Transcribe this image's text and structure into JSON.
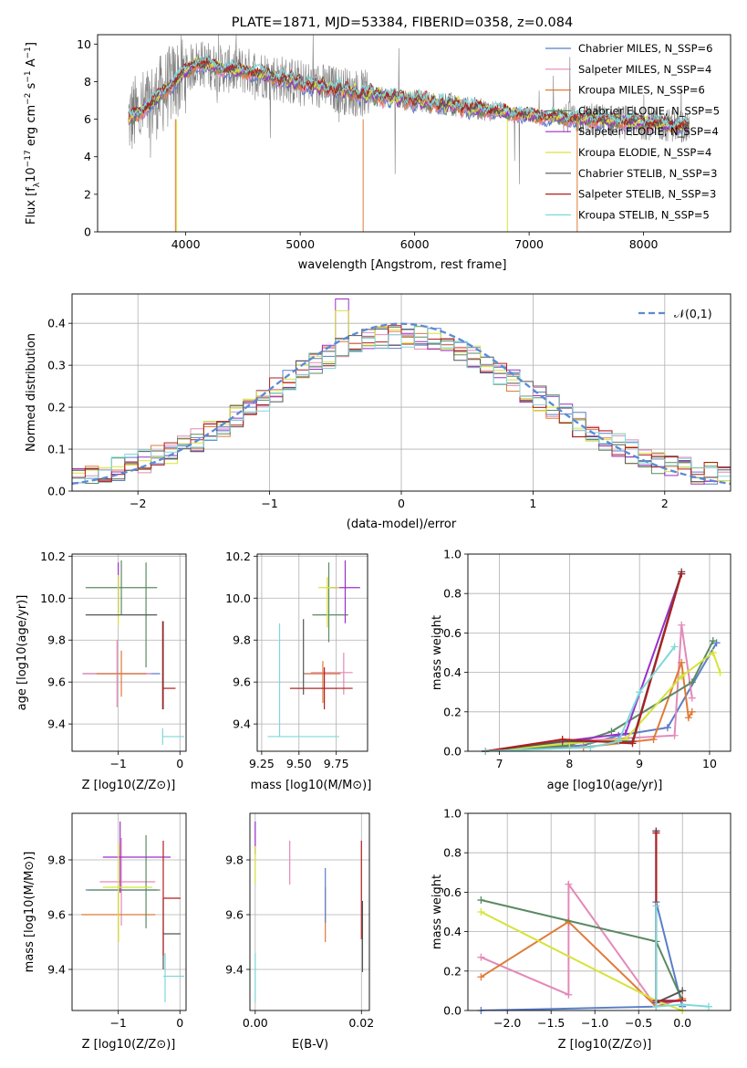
{
  "chart_data": [
    {
      "type": "line",
      "title": "PLATE=1871, MJD=53384, FIBERID=0358, z=0.084",
      "xlabel": "wavelength [Angstrom, rest frame]",
      "ylabel": "Flux [f_λ 10^-17 erg cm^-2 s^-1 A^-1]",
      "xlim": [
        3230,
        8760
      ],
      "ylim": [
        0,
        10.5
      ],
      "xticks": [
        4000,
        5000,
        6000,
        7000,
        8000
      ],
      "yticks": [
        0,
        2,
        4,
        6,
        8,
        10
      ],
      "data_color": "#808080",
      "legend_position": "upper-right",
      "continuum": {
        "x": [
          3500,
          3700,
          3900,
          4100,
          4300,
          4600,
          5000,
          5500,
          6000,
          6500,
          7000,
          7500,
          8000,
          8400
        ],
        "y": [
          6.0,
          6.8,
          8.0,
          9.0,
          8.7,
          8.5,
          7.9,
          7.4,
          7.0,
          6.6,
          6.2,
          6.0,
          5.8,
          5.6
        ]
      },
      "series": [
        {
          "name": "Chabrier MILES, N_SSP=6",
          "color": "#5a7ec8"
        },
        {
          "name": "Salpeter MILES, N_SSP=4",
          "color": "#e389b9"
        },
        {
          "name": "Kroupa MILES, N_SSP=6",
          "color": "#e07b39"
        },
        {
          "name": "Chabrier ELODIE, N_SSP=5",
          "color": "#5b8a63"
        },
        {
          "name": "Salpeter ELODIE, N_SSP=4",
          "color": "#9b2fc9"
        },
        {
          "name": "Kroupa ELODIE, N_SSP=4",
          "color": "#d6e33a"
        },
        {
          "name": "Chabrier STELIB, N_SSP=3",
          "color": "#555555"
        },
        {
          "name": "Salpeter STELIB, N_SSP=3",
          "color": "#b21e1e"
        },
        {
          "name": "Kroupa STELIB, N_SSP=5",
          "color": "#7fd8d8"
        }
      ]
    },
    {
      "type": "line",
      "xlabel": "(data-model)/error",
      "ylabel": "Normed distribution",
      "xlim": [
        -2.5,
        2.5
      ],
      "ylim": [
        0,
        0.47
      ],
      "xticks": [
        -2,
        -1,
        0,
        1,
        2
      ],
      "yticks": [
        0.0,
        0.1,
        0.2,
        0.3,
        0.4
      ],
      "reference_curve": {
        "name": "𝒩(0,1)",
        "color": "#5b8ad6",
        "mean": 0,
        "sigma": 1
      },
      "legend_position": "upper-right",
      "bin_width": 0.1
    },
    {
      "type": "scatter",
      "xlabel": "Z [log10(Z/Z⊙)]",
      "ylabel": "age  [log10(age/yr)]",
      "xlim": [
        -1.75,
        0.1
      ],
      "ylim": [
        9.27,
        10.21
      ],
      "xticks": [
        -1,
        0
      ],
      "yticks": [
        9.4,
        9.6,
        9.8,
        10.0,
        10.2
      ],
      "points": [
        {
          "series": 0,
          "x": -0.95,
          "xerr": 0.63,
          "y": 9.64,
          "yerr": 0.0
        },
        {
          "series": 1,
          "x": -1.02,
          "xerr": 0.56,
          "y": 9.64,
          "yerr": 0.16
        },
        {
          "series": 2,
          "x": -0.95,
          "xerr": 0.4,
          "y": 9.64,
          "yerr": 0.11
        },
        {
          "series": 3,
          "x": -0.95,
          "xerr": 0.58,
          "y": 10.05,
          "yerr": 0.13
        },
        {
          "series": 3,
          "x": -0.55,
          "xerr": 0.0,
          "y": 9.92,
          "yerr": 0.25
        },
        {
          "series": 4,
          "x": -1.0,
          "xerr": 0.0,
          "y": 10.05,
          "yerr": 0.12
        },
        {
          "series": 5,
          "x": -1.0,
          "xerr": 0.0,
          "y": 9.99,
          "yerr": 0.12
        },
        {
          "series": 6,
          "x": -0.95,
          "xerr": 0.58,
          "y": 9.92,
          "yerr": 0.0
        },
        {
          "series": 6,
          "x": -0.27,
          "xerr": 0.0,
          "y": 9.68,
          "yerr": 0.21
        },
        {
          "series": 7,
          "x": -0.17,
          "xerr": 0.1,
          "y": 9.57,
          "yerr": 0.0
        },
        {
          "series": 7,
          "x": -0.28,
          "xerr": 0.0,
          "y": 9.68,
          "yerr": 0.21
        },
        {
          "series": 8,
          "x": -0.1,
          "xerr": 0.17,
          "y": 9.34,
          "yerr": 0.0
        },
        {
          "series": 8,
          "x": -0.28,
          "xerr": 0.0,
          "y": 9.34,
          "yerr": 0.04
        }
      ]
    },
    {
      "type": "scatter",
      "xlabel": "mass [log10(M/M⊙)]",
      "xlim": [
        9.22,
        9.96
      ],
      "ylim": [
        9.27,
        10.21
      ],
      "xticks": [
        9.25,
        9.5,
        9.75
      ],
      "yticks": [
        9.4,
        9.6,
        9.8,
        10.0,
        10.2
      ],
      "points": [
        {
          "series": 0,
          "x": 9.65,
          "xerr": 0.12,
          "y": 9.64,
          "yerr": 0.0
        },
        {
          "series": 1,
          "x": 9.8,
          "xerr": 0.0,
          "y": 9.64,
          "yerr": 0.1
        },
        {
          "series": 1,
          "x": 9.72,
          "xerr": 0.14,
          "y": 9.645,
          "yerr": 0.0
        },
        {
          "series": 2,
          "x": 9.66,
          "xerr": 0.12,
          "y": 9.64,
          "yerr": 0.0
        },
        {
          "series": 2,
          "x": 9.66,
          "xerr": 0.0,
          "y": 9.6,
          "yerr": 0.1
        },
        {
          "series": 3,
          "x": 9.7,
          "xerr": 0.0,
          "y": 9.98,
          "yerr": 0.19
        },
        {
          "series": 3,
          "x": 9.71,
          "xerr": 0.12,
          "y": 9.92,
          "yerr": 0.0
        },
        {
          "series": 4,
          "x": 9.81,
          "xerr": 0.1,
          "y": 10.05,
          "yerr": 0.0
        },
        {
          "series": 4,
          "x": 9.81,
          "xerr": 0.0,
          "y": 10.03,
          "yerr": 0.15
        },
        {
          "series": 5,
          "x": 9.7,
          "xerr": 0.07,
          "y": 10.05,
          "yerr": 0.0
        },
        {
          "series": 5,
          "x": 9.69,
          "xerr": 0.0,
          "y": 9.98,
          "yerr": 0.12
        },
        {
          "series": 6,
          "x": 9.53,
          "xerr": 0.0,
          "y": 9.72,
          "yerr": 0.18
        },
        {
          "series": 6,
          "x": 9.6,
          "xerr": 0.16,
          "y": 9.57,
          "yerr": 0.0
        },
        {
          "series": 7,
          "x": 9.65,
          "xerr": 0.21,
          "y": 9.57,
          "yerr": 0.0
        },
        {
          "series": 7,
          "x": 9.67,
          "xerr": 0.0,
          "y": 9.57,
          "yerr": 0.1
        },
        {
          "series": 8,
          "x": 9.37,
          "xerr": 0.0,
          "y": 9.61,
          "yerr": 0.27
        },
        {
          "series": 8,
          "x": 9.53,
          "xerr": 0.24,
          "y": 9.34,
          "yerr": 0.0
        }
      ]
    },
    {
      "type": "line",
      "xlabel": "age  [log10(age/yr)]",
      "ylabel": "mass weight",
      "xlim": [
        6.55,
        10.3
      ],
      "ylim": [
        0,
        1
      ],
      "xticks": [
        7,
        8,
        9,
        10
      ],
      "yticks": [
        0.0,
        0.2,
        0.4,
        0.6,
        0.8,
        1.0
      ],
      "series": [
        {
          "series": 0,
          "x": [
            6.8,
            8.2,
            8.7,
            9.4,
            10.1
          ],
          "y": [
            0.0,
            0.03,
            0.08,
            0.12,
            0.55
          ]
        },
        {
          "series": 1,
          "x": [
            6.8,
            8.0,
            9.5,
            9.6,
            9.75
          ],
          "y": [
            0.0,
            0.05,
            0.08,
            0.64,
            0.27
          ]
        },
        {
          "series": 2,
          "x": [
            6.8,
            8.2,
            9.2,
            9.6,
            9.7,
            9.75
          ],
          "y": [
            0.0,
            0.02,
            0.06,
            0.45,
            0.17,
            0.2
          ]
        },
        {
          "series": 3,
          "x": [
            6.8,
            8.0,
            8.6,
            9.75,
            10.05
          ],
          "y": [
            0.0,
            0.03,
            0.1,
            0.35,
            0.56
          ]
        },
        {
          "series": 4,
          "x": [
            6.8,
            7.9,
            8.8,
            9.6
          ],
          "y": [
            0.0,
            0.05,
            0.09,
            0.9
          ]
        },
        {
          "series": 5,
          "x": [
            6.8,
            8.0,
            8.8,
            9.6,
            10.05,
            10.15
          ],
          "y": [
            0.0,
            0.04,
            0.06,
            0.38,
            0.5,
            0.4
          ]
        },
        {
          "series": 6,
          "x": [
            6.8,
            7.9,
            8.9,
            9.6
          ],
          "y": [
            0.0,
            0.05,
            0.05,
            0.91
          ]
        },
        {
          "series": 7,
          "x": [
            6.8,
            7.9,
            8.9,
            9.6
          ],
          "y": [
            0.0,
            0.06,
            0.04,
            0.9
          ]
        },
        {
          "series": 8,
          "x": [
            6.8,
            8.3,
            8.7,
            9.0,
            9.5
          ],
          "y": [
            0.0,
            0.02,
            0.05,
            0.3,
            0.53
          ]
        }
      ]
    },
    {
      "type": "scatter",
      "xlabel": "Z [log10(Z/Z⊙)]",
      "ylabel": "mass [log10(M/M⊙)]",
      "xlim": [
        -1.75,
        0.1
      ],
      "ylim": [
        9.25,
        9.97
      ],
      "xticks": [
        -1,
        0
      ],
      "yticks": [
        9.4,
        9.6,
        9.8
      ],
      "points": [
        {
          "series": 0,
          "x": -0.95,
          "xerr": 0.58,
          "y": 9.69,
          "yerr": 0.0
        },
        {
          "series": 1,
          "x": -0.95,
          "xerr": 0.0,
          "y": 9.72,
          "yerr": 0.16
        },
        {
          "series": 1,
          "x": -0.85,
          "xerr": 0.45,
          "y": 9.72,
          "yerr": 0.0
        },
        {
          "series": 2,
          "x": -1.0,
          "xerr": 0.6,
          "y": 9.6,
          "yerr": 0.0
        },
        {
          "series": 2,
          "x": -1.0,
          "xerr": 0.0,
          "y": 9.6,
          "yerr": 0.1
        },
        {
          "series": 3,
          "x": -0.55,
          "xerr": 0.0,
          "y": 9.72,
          "yerr": 0.17
        },
        {
          "series": 3,
          "x": -0.9,
          "xerr": 0.58,
          "y": 9.69,
          "yerr": 0.0
        },
        {
          "series": 4,
          "x": -0.7,
          "xerr": 0.55,
          "y": 9.81,
          "yerr": 0.0
        },
        {
          "series": 4,
          "x": -0.97,
          "xerr": 0.0,
          "y": 9.81,
          "yerr": 0.13
        },
        {
          "series": 5,
          "x": -0.85,
          "xerr": 0.4,
          "y": 9.7,
          "yerr": 0.0
        },
        {
          "series": 5,
          "x": -1.0,
          "xerr": 0.0,
          "y": 9.68,
          "yerr": 0.18
        },
        {
          "series": 6,
          "x": -0.13,
          "xerr": 0.14,
          "y": 9.53,
          "yerr": 0.0
        },
        {
          "series": 6,
          "x": -0.27,
          "xerr": 0.0,
          "y": 9.53,
          "yerr": 0.13
        },
        {
          "series": 7,
          "x": -0.27,
          "xerr": 0.0,
          "y": 9.66,
          "yerr": 0.21
        },
        {
          "series": 7,
          "x": -0.13,
          "xerr": 0.14,
          "y": 9.66,
          "yerr": 0.0
        },
        {
          "series": 8,
          "x": -0.1,
          "xerr": 0.17,
          "y": 9.375,
          "yerr": 0.0
        },
        {
          "series": 8,
          "x": -0.24,
          "xerr": 0.0,
          "y": 9.37,
          "yerr": 0.09
        }
      ]
    },
    {
      "type": "scatter",
      "xlabel": "E(B-V)",
      "xlim": [
        -0.001,
        0.0215
      ],
      "ylim": [
        9.25,
        9.97
      ],
      "xticks": [
        0.0,
        0.02
      ],
      "xticklabels": [
        "0.00",
        "0.02"
      ],
      "yticks": [
        9.4,
        9.6,
        9.8
      ],
      "points": [
        {
          "series": 4,
          "x": 0.0,
          "y": 9.88,
          "yerr": 0.06
        },
        {
          "series": 5,
          "x": 0.0,
          "y": 9.78,
          "yerr": 0.07
        },
        {
          "series": 8,
          "x": 0.0,
          "y": 9.37,
          "yerr": 0.09
        },
        {
          "series": 1,
          "x": 0.0065,
          "y": 9.79,
          "yerr": 0.08
        },
        {
          "series": 2,
          "x": 0.0132,
          "y": 9.6,
          "yerr": 0.1
        },
        {
          "series": 0,
          "x": 0.0132,
          "y": 9.67,
          "yerr": 0.1
        },
        {
          "series": 7,
          "x": 0.02,
          "y": 9.69,
          "yerr": 0.18
        },
        {
          "series": 6,
          "x": 0.0202,
          "y": 9.52,
          "yerr": 0.13
        }
      ]
    },
    {
      "type": "line",
      "xlabel": "Z [log10(Z/Z⊙)]",
      "ylabel": "mass weight",
      "xlim": [
        -2.45,
        0.55
      ],
      "ylim": [
        0,
        1
      ],
      "xticks": [
        -2.0,
        -1.5,
        -1.0,
        -0.5,
        0.0
      ],
      "xticklabels": [
        "−2.0",
        "−1.5",
        "−1.0",
        "−0.5",
        "0.0"
      ],
      "yticks": [
        0.0,
        0.2,
        0.4,
        0.6,
        0.8,
        1.0
      ],
      "series": [
        {
          "series": 0,
          "x": [
            -2.3,
            -0.3,
            -0.3,
            0.0
          ],
          "y": [
            0.0,
            0.02,
            0.55,
            0.02
          ]
        },
        {
          "series": 1,
          "x": [
            -2.3,
            -1.3,
            -1.3,
            -0.3
          ],
          "y": [
            0.27,
            0.08,
            0.64,
            0.02
          ]
        },
        {
          "series": 2,
          "x": [
            -2.3,
            -1.3,
            -0.3,
            0.0
          ],
          "y": [
            0.17,
            0.45,
            0.02,
            0.06
          ]
        },
        {
          "series": 3,
          "x": [
            -2.3,
            -0.3,
            0.0
          ],
          "y": [
            0.56,
            0.35,
            0.05
          ]
        },
        {
          "series": 4,
          "x": [
            -0.3,
            -0.3,
            0.0
          ],
          "y": [
            0.91,
            0.04,
            0.05
          ]
        },
        {
          "series": 5,
          "x": [
            -2.3,
            -0.3,
            0.0
          ],
          "y": [
            0.5,
            0.05,
            0.0
          ]
        },
        {
          "series": 6,
          "x": [
            -0.3,
            -0.3,
            0.0
          ],
          "y": [
            0.91,
            0.04,
            0.1
          ]
        },
        {
          "series": 7,
          "x": [
            -0.3,
            -0.3,
            0.0
          ],
          "y": [
            0.9,
            0.05,
            0.05
          ]
        },
        {
          "series": 8,
          "x": [
            -0.3,
            -0.3,
            0.0,
            0.3
          ],
          "y": [
            0.53,
            0.02,
            0.03,
            0.02
          ]
        }
      ]
    }
  ]
}
